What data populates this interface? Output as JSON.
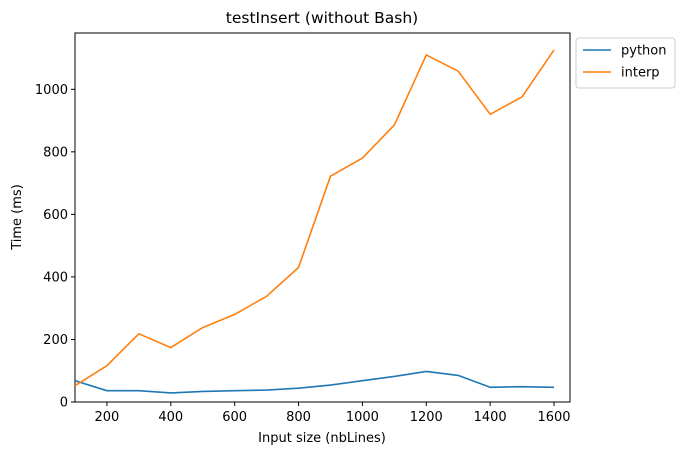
{
  "chart_data": {
    "type": "line",
    "title": "testInsert (without Bash)",
    "xlabel": "Input size (nbLines)",
    "ylabel": "Time (ms)",
    "x": [
      100,
      200,
      300,
      400,
      500,
      600,
      700,
      800,
      900,
      1000,
      1100,
      1200,
      1300,
      1400,
      1500,
      1600
    ],
    "xlim": [
      100,
      1650
    ],
    "ylim": [
      0,
      1180
    ],
    "xticks": [
      200,
      400,
      600,
      800,
      1000,
      1200,
      1400,
      1600
    ],
    "yticks": [
      0,
      200,
      400,
      600,
      800,
      1000
    ],
    "grid": false,
    "legend_position": "outside-top-right",
    "series": [
      {
        "name": "python",
        "color": "#1f77b4",
        "values": [
          68,
          36,
          36,
          29,
          34,
          36,
          38,
          44,
          54,
          68,
          82,
          98,
          85,
          47,
          49,
          47
        ]
      },
      {
        "name": "interp",
        "color": "#ff7f0e",
        "values": [
          52,
          116,
          218,
          174,
          238,
          280,
          338,
          430,
          722,
          780,
          886,
          1110,
          1058,
          920,
          976,
          1126
        ]
      }
    ]
  }
}
